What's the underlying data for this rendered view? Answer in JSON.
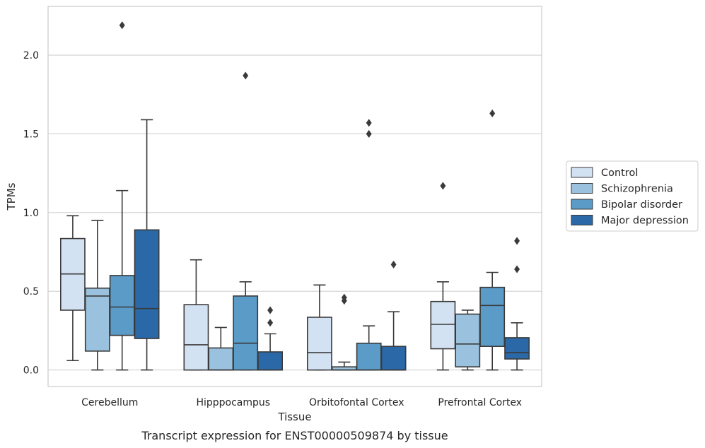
{
  "chart_data": {
    "type": "box",
    "xlabel": "Tissue",
    "ylabel": "TPMs",
    "caption": "Transcript expression for ENST00000509874 by tissue",
    "categories": [
      "Cerebellum",
      "Hipppocampus",
      "Orbitofontal Cortex",
      "Prefrontal Cortex"
    ],
    "ylim": [
      -0.105,
      2.31
    ],
    "yticks": [
      0.0,
      0.5,
      1.0,
      1.5,
      2.0
    ],
    "ytick_labels": [
      "0.0",
      "0.5",
      "1.0",
      "1.5",
      "2.0"
    ],
    "grid": "horizontal",
    "legend_position": "right",
    "series": [
      {
        "name": "Control",
        "color": "#d3e2f2",
        "boxes": [
          {
            "whislo": 0.06,
            "q1": 0.38,
            "med": 0.61,
            "q3": 0.835,
            "whishi": 0.98,
            "fliers": []
          },
          {
            "whislo": 0.0,
            "q1": 0.0,
            "med": 0.16,
            "q3": 0.415,
            "whishi": 0.7,
            "fliers": []
          },
          {
            "whislo": 0.0,
            "q1": 0.0,
            "med": 0.11,
            "q3": 0.335,
            "whishi": 0.54,
            "fliers": []
          },
          {
            "whislo": 0.0,
            "q1": 0.135,
            "med": 0.29,
            "q3": 0.435,
            "whishi": 0.56,
            "fliers": [
              1.17
            ]
          }
        ]
      },
      {
        "name": "Schizophrenia",
        "color": "#9ac1dd",
        "boxes": [
          {
            "whislo": 0.0,
            "q1": 0.12,
            "med": 0.47,
            "q3": 0.52,
            "whishi": 0.95,
            "fliers": []
          },
          {
            "whislo": 0.0,
            "q1": 0.0,
            "med": 0.0,
            "q3": 0.14,
            "whishi": 0.27,
            "fliers": []
          },
          {
            "whislo": 0.0,
            "q1": 0.0,
            "med": 0.0,
            "q3": 0.02,
            "whishi": 0.05,
            "fliers": [
              0.44,
              0.46
            ]
          },
          {
            "whislo": 0.0,
            "q1": 0.02,
            "med": 0.165,
            "q3": 0.355,
            "whishi": 0.38,
            "fliers": []
          }
        ]
      },
      {
        "name": "Bipolar disorder",
        "color": "#5b9bc8",
        "boxes": [
          {
            "whislo": 0.0,
            "q1": 0.22,
            "med": 0.4,
            "q3": 0.6,
            "whishi": 1.14,
            "fliers": [
              2.19
            ]
          },
          {
            "whislo": 0.0,
            "q1": 0.0,
            "med": 0.17,
            "q3": 0.47,
            "whishi": 0.56,
            "fliers": [
              1.87
            ]
          },
          {
            "whislo": 0.0,
            "q1": 0.0,
            "med": 0.0,
            "q3": 0.17,
            "whishi": 0.28,
            "fliers": [
              1.5,
              1.57
            ]
          },
          {
            "whislo": 0.0,
            "q1": 0.15,
            "med": 0.41,
            "q3": 0.525,
            "whishi": 0.62,
            "fliers": [
              1.63
            ]
          }
        ]
      },
      {
        "name": "Major depression",
        "color": "#2a68a7",
        "boxes": [
          {
            "whislo": 0.0,
            "q1": 0.2,
            "med": 0.39,
            "q3": 0.89,
            "whishi": 1.59,
            "fliers": []
          },
          {
            "whislo": 0.0,
            "q1": 0.0,
            "med": 0.0,
            "q3": 0.115,
            "whishi": 0.23,
            "fliers": [
              0.3,
              0.38
            ]
          },
          {
            "whislo": 0.0,
            "q1": 0.0,
            "med": 0.0,
            "q3": 0.15,
            "whishi": 0.37,
            "fliers": [
              0.67
            ]
          },
          {
            "whislo": 0.0,
            "q1": 0.07,
            "med": 0.11,
            "q3": 0.205,
            "whishi": 0.3,
            "fliers": [
              0.64,
              0.82
            ]
          }
        ]
      }
    ]
  }
}
